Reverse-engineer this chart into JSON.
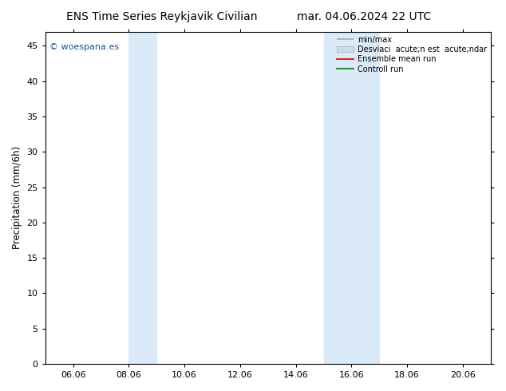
{
  "title_left": "ENS Time Series Reykjavik Civilian",
  "title_right": "mar. 04.06.2024 22 UTC",
  "ylabel": "Precipitation (mm/6h)",
  "ylim": [
    0,
    47
  ],
  "yticks": [
    0,
    5,
    10,
    15,
    20,
    25,
    30,
    35,
    40,
    45
  ],
  "xlim_days": [
    5.0,
    21.0
  ],
  "xtick_labels": [
    "06.06",
    "08.06",
    "10.06",
    "12.06",
    "14.06",
    "16.06",
    "18.06",
    "20.06"
  ],
  "xtick_positions": [
    6.0,
    8.0,
    10.0,
    12.0,
    14.0,
    16.0,
    18.0,
    20.0
  ],
  "shaded_regions": [
    {
      "xmin": 8.0,
      "xmax": 9.0,
      "color": "#daeaf8"
    },
    {
      "xmin": 15.0,
      "xmax": 17.0,
      "color": "#daeaf8"
    }
  ],
  "watermark": "© woespana.es",
  "watermark_color": "#1a5296",
  "bg_color": "#ffffff",
  "plot_bg": "#f5f5f5",
  "legend": {
    "minmax_label": "min/max",
    "std_label": "Desviaci  acute;n est  acute;ndar",
    "ensemble_label": "Ensemble mean run",
    "control_label": "Controll run",
    "minmax_color": "#aaaaaa",
    "std_color": "#c8dced",
    "ensemble_color": "#cc0000",
    "control_color": "#007700"
  },
  "title_fontsize": 10,
  "axis_fontsize": 8.5,
  "tick_fontsize": 8
}
